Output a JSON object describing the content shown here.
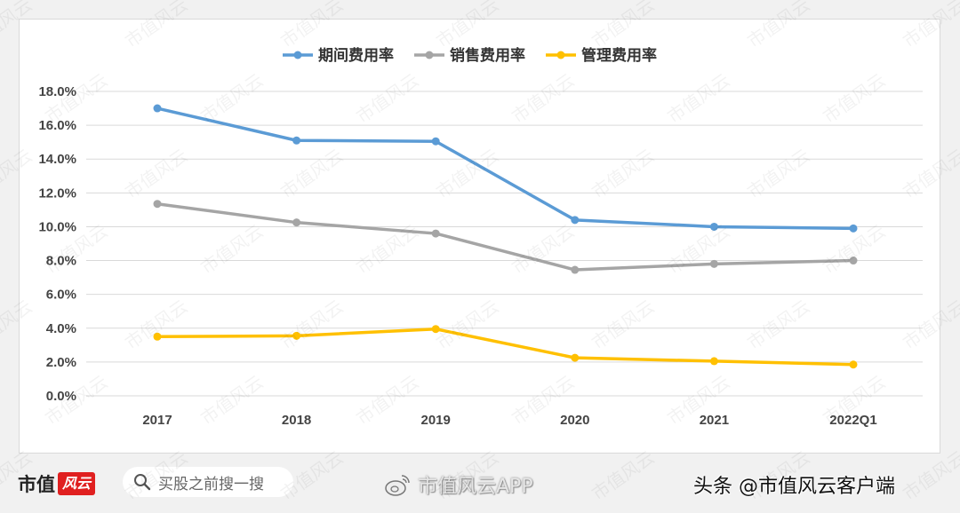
{
  "chart_data": {
    "type": "line",
    "title": "",
    "xlabel": "",
    "ylabel": "",
    "categories": [
      "2017",
      "2018",
      "2019",
      "2020",
      "2021",
      "2022Q1"
    ],
    "ylim": [
      0,
      18
    ],
    "yticks": [
      0,
      2,
      4,
      6,
      8,
      10,
      12,
      14,
      16,
      18
    ],
    "ytick_labels": [
      "0.0%",
      "2.0%",
      "4.0%",
      "6.0%",
      "8.0%",
      "10.0%",
      "12.0%",
      "14.0%",
      "16.0%",
      "18.0%"
    ],
    "grid": true,
    "legend_position": "top-center",
    "series": [
      {
        "name": "期间费用率",
        "color": "#5b9bd5",
        "values": [
          17.0,
          15.1,
          15.05,
          10.4,
          10.0,
          9.9
        ]
      },
      {
        "name": "销售费用率",
        "color": "#a5a5a5",
        "values": [
          11.35,
          10.25,
          9.6,
          7.45,
          7.8,
          8.0
        ]
      },
      {
        "name": "管理费用率",
        "color": "#ffc000",
        "values": [
          3.5,
          3.55,
          3.95,
          2.25,
          2.05,
          1.85
        ]
      }
    ]
  },
  "footer": {
    "logo_text": "市值",
    "logo_badge": "风云",
    "search_placeholder": "买股之前搜一搜",
    "weibo_text": "市值风云APP",
    "toutiao_text": "头条 @市值风云客户端"
  },
  "watermark_text": "市值风云"
}
